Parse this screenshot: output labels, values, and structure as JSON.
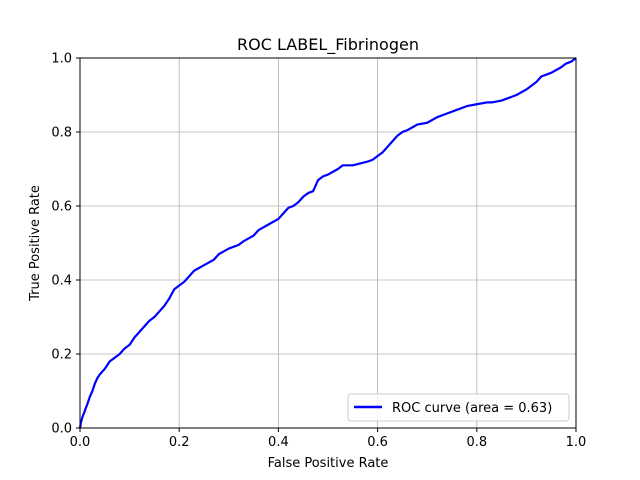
{
  "chart_data": {
    "type": "line",
    "title": "ROC LABEL_Fibrinogen",
    "xlabel": "False Positive Rate",
    "ylabel": "True Positive Rate",
    "xlim": [
      0.0,
      1.0
    ],
    "ylim": [
      0.0,
      1.0
    ],
    "xticks": [
      "0.0",
      "0.2",
      "0.4",
      "0.6",
      "0.8",
      "1.0"
    ],
    "yticks": [
      "0.0",
      "0.2",
      "0.4",
      "0.6",
      "0.8",
      "1.0"
    ],
    "grid": true,
    "legend_position": "lower-right",
    "series": [
      {
        "name": "ROC curve (area = 0.63)",
        "color": "#0000ff",
        "x": [
          0.0,
          0.002,
          0.005,
          0.008,
          0.012,
          0.015,
          0.02,
          0.025,
          0.03,
          0.035,
          0.04,
          0.05,
          0.055,
          0.06,
          0.07,
          0.08,
          0.09,
          0.1,
          0.11,
          0.12,
          0.13,
          0.14,
          0.15,
          0.16,
          0.17,
          0.18,
          0.19,
          0.2,
          0.21,
          0.22,
          0.23,
          0.25,
          0.27,
          0.28,
          0.3,
          0.32,
          0.33,
          0.35,
          0.36,
          0.38,
          0.4,
          0.41,
          0.42,
          0.43,
          0.44,
          0.45,
          0.46,
          0.47,
          0.48,
          0.49,
          0.5,
          0.52,
          0.53,
          0.55,
          0.58,
          0.59,
          0.6,
          0.61,
          0.62,
          0.63,
          0.64,
          0.65,
          0.66,
          0.68,
          0.7,
          0.72,
          0.74,
          0.76,
          0.78,
          0.8,
          0.82,
          0.83,
          0.85,
          0.86,
          0.87,
          0.88,
          0.9,
          0.92,
          0.93,
          0.95,
          0.97,
          0.98,
          0.99,
          1.0
        ],
        "y": [
          0.0,
          0.015,
          0.03,
          0.04,
          0.055,
          0.065,
          0.085,
          0.1,
          0.12,
          0.135,
          0.145,
          0.16,
          0.17,
          0.18,
          0.19,
          0.2,
          0.215,
          0.225,
          0.245,
          0.26,
          0.275,
          0.29,
          0.3,
          0.315,
          0.33,
          0.35,
          0.375,
          0.385,
          0.395,
          0.41,
          0.425,
          0.44,
          0.455,
          0.47,
          0.485,
          0.495,
          0.505,
          0.52,
          0.535,
          0.55,
          0.565,
          0.58,
          0.595,
          0.6,
          0.61,
          0.625,
          0.635,
          0.64,
          0.67,
          0.68,
          0.685,
          0.7,
          0.71,
          0.71,
          0.72,
          0.725,
          0.735,
          0.745,
          0.76,
          0.775,
          0.79,
          0.8,
          0.805,
          0.82,
          0.825,
          0.84,
          0.85,
          0.86,
          0.87,
          0.875,
          0.88,
          0.88,
          0.885,
          0.89,
          0.895,
          0.9,
          0.915,
          0.935,
          0.95,
          0.96,
          0.975,
          0.985,
          0.99,
          1.0
        ]
      }
    ]
  }
}
